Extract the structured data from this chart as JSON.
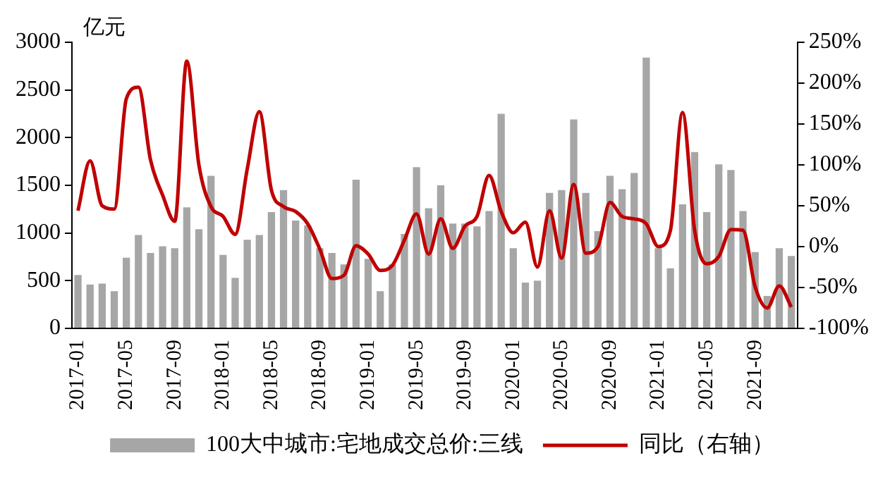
{
  "chart_data": {
    "type": "bar",
    "ylabel": "亿元",
    "categories": [
      "2017-01",
      null,
      null,
      null,
      "2017-05",
      null,
      null,
      null,
      "2017-09",
      null,
      null,
      null,
      "2018-01",
      null,
      null,
      null,
      "2018-05",
      null,
      null,
      null,
      "2018-09",
      null,
      null,
      null,
      "2019-01",
      null,
      null,
      null,
      "2019-05",
      null,
      null,
      null,
      "2019-09",
      null,
      null,
      null,
      "2020-01",
      null,
      null,
      null,
      "2020-05",
      null,
      null,
      null,
      "2020-09",
      null,
      null,
      null,
      "2021-01",
      null,
      null,
      null,
      "2021-05",
      null,
      null,
      null,
      "2021-09",
      null,
      null,
      null
    ],
    "series": [
      {
        "name": "100大中城市:宅地成交总价:三线",
        "color": "#a6a6a6",
        "values": [
          560,
          460,
          470,
          390,
          740,
          980,
          790,
          860,
          840,
          1270,
          1040,
          1600,
          770,
          530,
          930,
          980,
          1220,
          1450,
          1130,
          1080,
          840,
          790,
          670,
          1560,
          730,
          390,
          670,
          990,
          1690,
          1260,
          1500,
          1100,
          1100,
          1070,
          1230,
          2250,
          840,
          480,
          500,
          1420,
          1450,
          2190,
          1420,
          1020,
          1600,
          1460,
          1630,
          2840,
          840,
          630,
          1300,
          1850,
          1220,
          1720,
          1660,
          1230,
          800,
          340,
          840,
          760
        ]
      },
      {
        "name": "同比（右轴）",
        "type": "line",
        "axis": "y2",
        "color": "#c00000",
        "values": [
          44,
          105,
          50,
          46,
          181,
          195,
          106,
          63,
          31,
          227,
          100,
          49,
          37,
          15,
          95,
          165,
          69,
          49,
          43,
          28,
          -3,
          -39,
          -35,
          1,
          -9,
          -29,
          -23,
          8,
          40,
          -9,
          34,
          -2,
          25,
          37,
          87,
          43,
          17,
          30,
          -25,
          44,
          -14,
          76,
          -8,
          0,
          54,
          37,
          34,
          28,
          0,
          20,
          164,
          20,
          -21,
          -12,
          21,
          20,
          -49,
          -75,
          -48,
          -74
        ]
      }
    ],
    "ylim": [
      0,
      3000
    ],
    "yticks": [
      0,
      500,
      1000,
      1500,
      2000,
      2500,
      3000
    ],
    "y2lim": [
      -100,
      250
    ],
    "y2ticks": [
      {
        "value": -100,
        "label": "-100%"
      },
      {
        "value": -50,
        "label": "-50%"
      },
      {
        "value": 0,
        "label": "0%"
      },
      {
        "value": 50,
        "label": "50%"
      },
      {
        "value": 100,
        "label": "100%"
      },
      {
        "value": 150,
        "label": "150%"
      },
      {
        "value": 200,
        "label": "200%"
      },
      {
        "value": 250,
        "label": "250%"
      }
    ],
    "legend": "bottom"
  }
}
